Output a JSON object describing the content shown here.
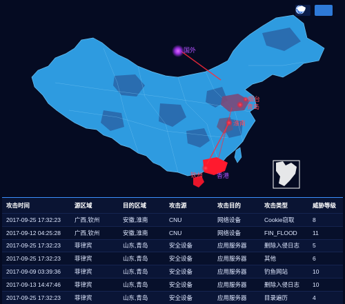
{
  "toolbar": {
    "globe_icon": "globe-icon",
    "china_map_icon": "china-map-icon"
  },
  "map": {
    "labels": {
      "overseas": "国外",
      "yantai": "烟台",
      "qingdao": "青岛",
      "huainan": "淮南",
      "qinzhou": "钦州",
      "hongkong": "香港"
    },
    "colors": {
      "background": "#050b22",
      "province_fill": "#2e9be0",
      "province_dark": "#2a6db0",
      "attack_target": "#ff1a2e",
      "overseas_marker": "#b040ff"
    }
  },
  "table": {
    "headers": [
      "攻击时间",
      "源区域",
      "目的区域",
      "攻击源",
      "攻击目的",
      "攻击类型",
      "威胁等级"
    ],
    "rows": [
      [
        "2017-09-25 17:32:23",
        "广西,钦州",
        "安徽,淮南",
        "CNU",
        "网络设备",
        "Cookie窃取",
        "8"
      ],
      [
        "2017-09-12 04:25:28",
        "广西,钦州",
        "安徽,淮南",
        "CNU",
        "网络设备",
        "FIN_FLOOD",
        "11"
      ],
      [
        "2017-09-25 17:32:23",
        "菲律宾",
        "山东,青岛",
        "安全设备",
        "应用服务器",
        "删除入侵日志",
        "5"
      ],
      [
        "2017-09-25 17:32:23",
        "菲律宾",
        "山东,青岛",
        "安全设备",
        "应用服务器",
        "其他",
        "6"
      ],
      [
        "2017-09-09 03:39:36",
        "菲律宾",
        "山东,青岛",
        "安全设备",
        "应用服务器",
        "钓鱼网站",
        "10"
      ],
      [
        "2017-09-13 14:47:46",
        "菲律宾",
        "山东,青岛",
        "安全设备",
        "应用服务器",
        "删除入侵日志",
        "10"
      ],
      [
        "2017-09-25 17:32:23",
        "菲律宾",
        "山东,青岛",
        "安全设备",
        "应用服务器",
        "目录遍历",
        "4"
      ]
    ]
  }
}
